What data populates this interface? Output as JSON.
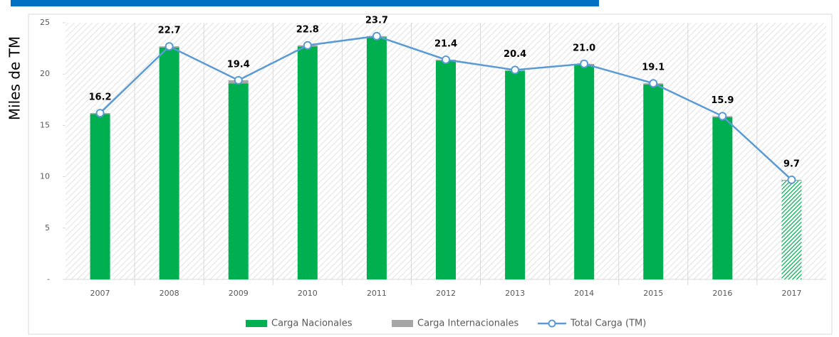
{
  "chart_data": {
    "type": "bar",
    "y_label": "Miles de TM",
    "categories": [
      "2007",
      "2008",
      "2009",
      "2010",
      "2011",
      "2012",
      "2013",
      "2014",
      "2015",
      "2016",
      "2017"
    ],
    "series": [
      {
        "name": "Carga Nacionales",
        "color": "#00b050",
        "values": [
          16.1,
          22.6,
          19.1,
          22.7,
          23.6,
          21.3,
          20.3,
          20.9,
          19.0,
          15.8,
          9.6
        ],
        "hatch": [
          false,
          false,
          false,
          false,
          false,
          false,
          false,
          false,
          false,
          false,
          true
        ]
      },
      {
        "name": "Carga Internacionales",
        "color": "#a6a6a6",
        "values": [
          0.1,
          0.1,
          0.3,
          0.1,
          0.1,
          0.1,
          0.1,
          0.1,
          0.1,
          0.1,
          0.1
        ]
      },
      {
        "name": "Total Carga (TM)",
        "type": "line",
        "color": "#5b9bd5",
        "values": [
          16.2,
          22.7,
          19.4,
          22.8,
          23.7,
          21.4,
          20.4,
          21.0,
          19.1,
          15.9,
          9.7
        ],
        "value_labels": [
          "16.2",
          "22.7",
          "19.4",
          "22.8",
          "23.7",
          "21.4",
          "20.4",
          "21.0",
          "19.1",
          "15.9",
          "9.7"
        ]
      }
    ],
    "ylim": [
      0,
      25
    ],
    "yticks": [
      {
        "value": 0,
        "label": "-"
      },
      5,
      10,
      15,
      20,
      25
    ],
    "legend": "bottom"
  }
}
